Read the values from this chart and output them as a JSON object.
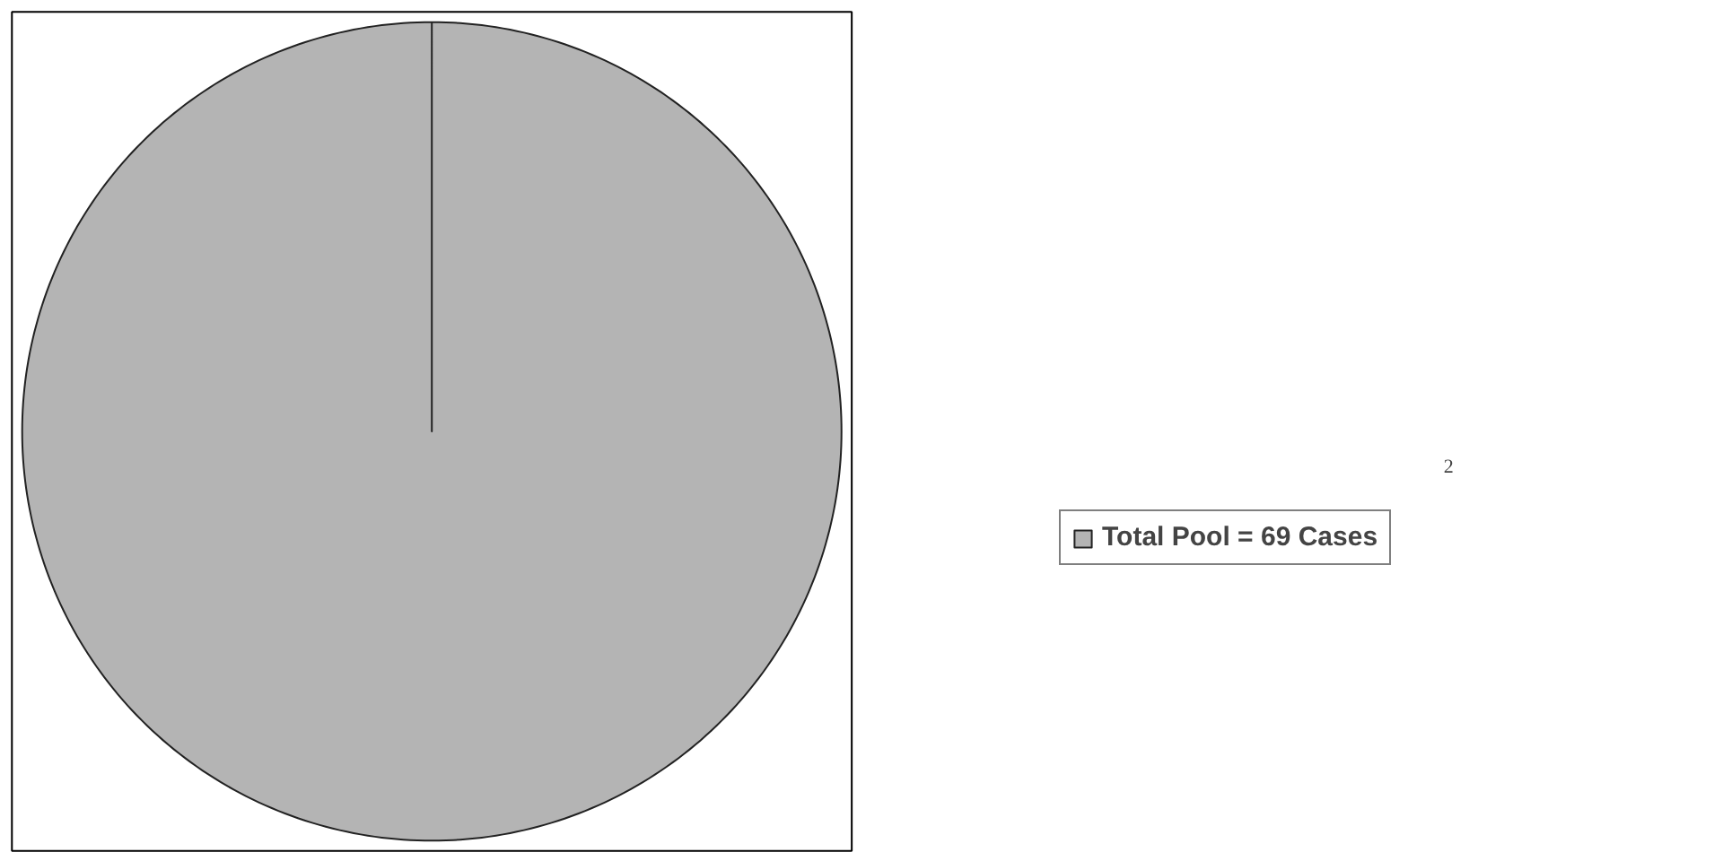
{
  "chart_data": {
    "type": "pie",
    "categories": [
      "Total Pool = 69 Cases"
    ],
    "values": [
      100
    ],
    "colors": [
      "#b4b4b4"
    ],
    "legend": "right",
    "annotations": [
      "2"
    ]
  }
}
